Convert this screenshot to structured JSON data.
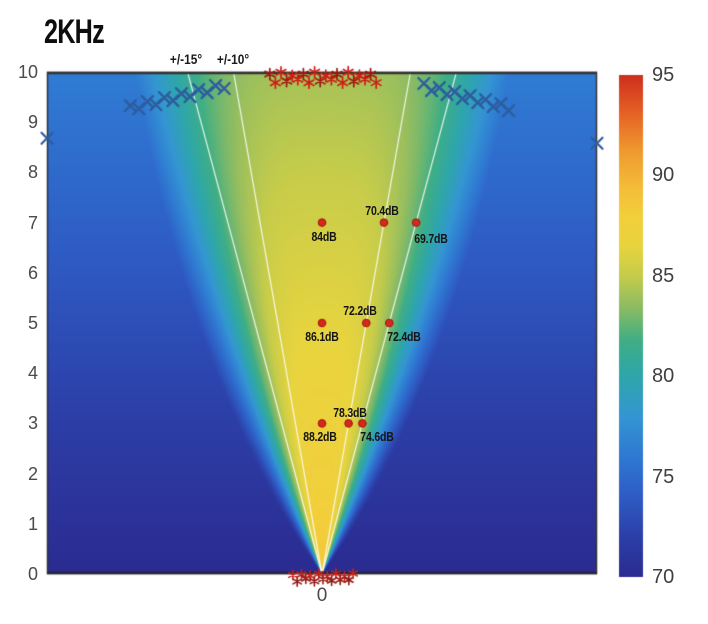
{
  "title": "2KHz",
  "plot": {
    "x_tick": "0",
    "y_ticks": [
      "0",
      "1",
      "2",
      "3",
      "4",
      "5",
      "6",
      "7",
      "8",
      "9",
      "10"
    ],
    "angle_labels": [
      {
        "text": "+/-15°",
        "x": 186
      },
      {
        "text": "+/-10°",
        "x": 233
      }
    ]
  },
  "colorbar": {
    "ticks": [
      "95",
      "90",
      "85",
      "80",
      "75",
      "70"
    ],
    "min": 70,
    "max": 95,
    "unit": "dB"
  },
  "chart_data": {
    "type": "heatmap",
    "title": "2KHz",
    "xlabel": "",
    "ylabel": "",
    "x_range": [
      -5.48,
      5.48
    ],
    "y_range": [
      0,
      10
    ],
    "color_range": [
      70,
      95
    ],
    "colormap": "jet",
    "colormap_stops": [
      [
        0.0,
        "#2b2b90"
      ],
      [
        0.08,
        "#2c3fa8"
      ],
      [
        0.16,
        "#2e5cc4"
      ],
      [
        0.24,
        "#2f79d2"
      ],
      [
        0.32,
        "#3496d2"
      ],
      [
        0.4,
        "#2ea6ab"
      ],
      [
        0.47,
        "#3fae85"
      ],
      [
        0.54,
        "#8fbc62"
      ],
      [
        0.6,
        "#c6cc4a"
      ],
      [
        0.66,
        "#e8d43e"
      ],
      [
        0.72,
        "#f2cf3b"
      ],
      [
        0.78,
        "#f4bb38"
      ],
      [
        0.85,
        "#ef992e"
      ],
      [
        0.92,
        "#e66426"
      ],
      [
        1.0,
        "#cd2f1d"
      ]
    ],
    "beam_model": {
      "L0": 88.6,
      "slope": 0.45,
      "att_max": 22,
      "att_halfangle_deg": 24,
      "att_power": 4,
      "bg_base": 70,
      "bg_slope": 0.62,
      "clamp": [
        70,
        95
      ]
    },
    "fan_lines_deg": [
      -15,
      -10,
      10,
      15
    ],
    "fan_line_color": "rgba(255,255,255,0.85)",
    "marker_color": "#d6281c",
    "marker_edge_color": "#a01510",
    "measurements": [
      {
        "y": 7,
        "angle_deg": 0,
        "value": 84,
        "label": "84dB",
        "dx": 2,
        "dy": 14
      },
      {
        "y": 7,
        "angle_deg": 10,
        "value": 70.4,
        "label": "70.4dB",
        "dx": -2,
        "dy": -12
      },
      {
        "y": 7,
        "angle_deg": 15,
        "value": 69.7,
        "label": "69.7dB",
        "dx": 15,
        "dy": 16
      },
      {
        "y": 5,
        "angle_deg": 0,
        "value": 86.1,
        "label": "86.1dB",
        "dx": 0,
        "dy": 14
      },
      {
        "y": 5,
        "angle_deg": 10,
        "value": 72.2,
        "label": "72.2dB",
        "dx": -6,
        "dy": -12
      },
      {
        "y": 5,
        "angle_deg": 15,
        "value": 72.4,
        "label": "72.4dB",
        "dx": 15,
        "dy": 14
      },
      {
        "y": 3,
        "angle_deg": 0,
        "value": 88.2,
        "label": "88.2dB",
        "dx": -2,
        "dy": 14
      },
      {
        "y": 3,
        "angle_deg": 10,
        "value": 78.3,
        "label": "78.3dB",
        "dx": 1,
        "dy": -10
      },
      {
        "y": 3,
        "angle_deg": 15,
        "value": 74.6,
        "label": "74.6dB",
        "dx": 15,
        "dy": 14
      }
    ],
    "top_cluster": {
      "marker": "asterisk",
      "color": "#cf1d15",
      "dark_color": "#9e150f",
      "y": 9.9,
      "x_start": -1.04,
      "x_end": 1.08,
      "count": 20
    },
    "bottom_cluster": {
      "marker": "asterisk",
      "color": "#c2231b",
      "dark_color": "#8f1712",
      "y": 0.0,
      "x_start": -0.58,
      "x_end": 0.62,
      "count": 15
    },
    "x_chains": [
      {
        "marker": "x",
        "color": "#2d5d9f",
        "from": [
          -3.82,
          9.28
        ],
        "to": [
          -1.95,
          9.72
        ],
        "count": 12
      },
      {
        "marker": "x",
        "color": "#2d5d9f",
        "from": [
          2.03,
          9.72
        ],
        "to": [
          3.72,
          9.28
        ],
        "count": 12
      }
    ],
    "edge_x_markers": [
      {
        "x": -5.48,
        "y": 8.68
      },
      {
        "x": 5.48,
        "y": 8.58
      }
    ]
  }
}
